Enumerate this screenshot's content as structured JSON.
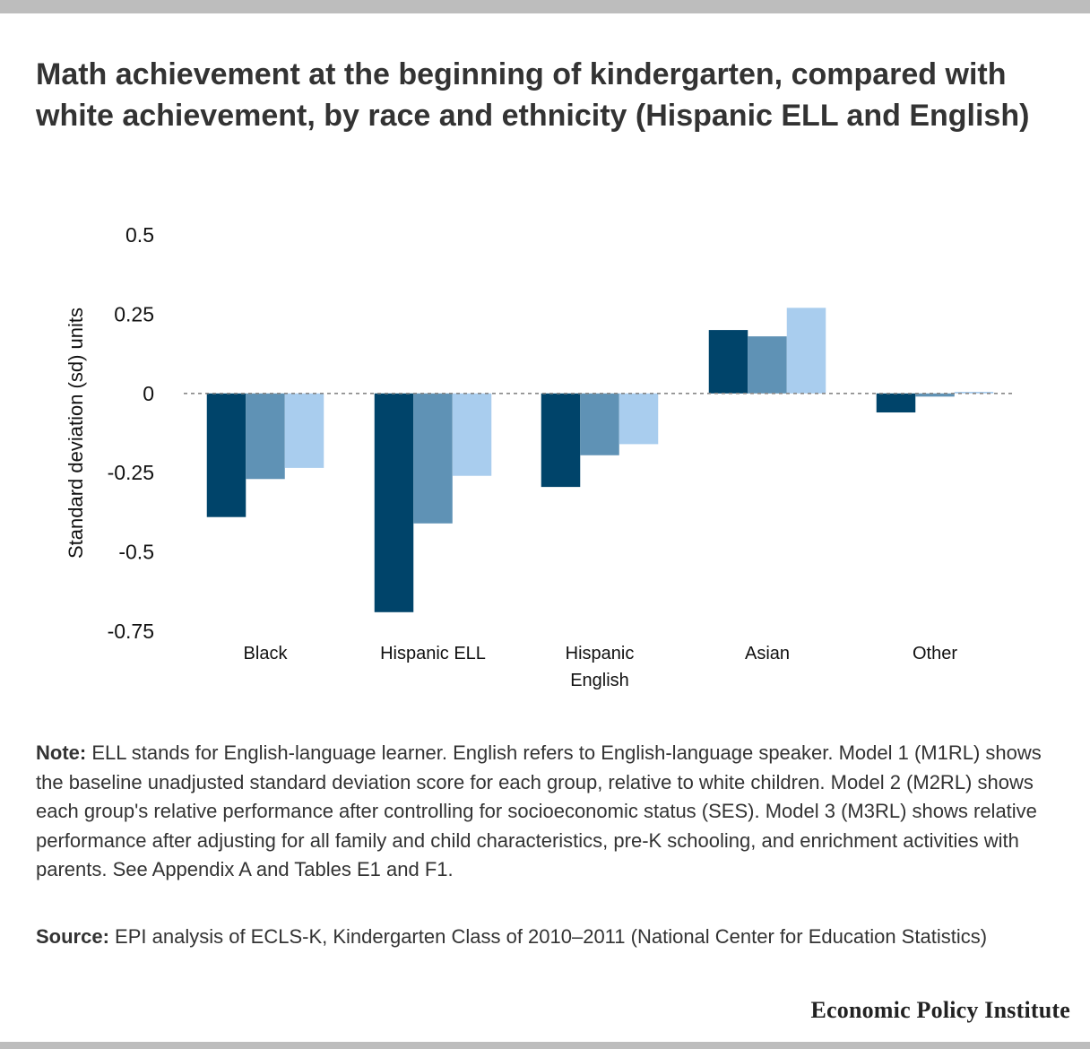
{
  "title": "Math achievement at the beginning of kindergarten, compared with white achievement, by race and ethnicity (Hispanic ELL and English)",
  "note": {
    "label": "Note:",
    "text": "ELL stands for English-language learner. English refers to English-language speaker. Model 1 (M1RL) shows the baseline unadjusted standard deviation score for each group, relative to white children. Model 2 (M2RL) shows each group's relative performance after controlling for socioeconomic status (SES). Model 3 (M3RL) shows relative performance after adjusting for all family and child characteristics, pre-K schooling, and enrichment activities with parents. See Appendix A and Tables E1 and F1."
  },
  "source": {
    "label": "Source:",
    "text": "EPI analysis of ECLS-K, Kindergarten Class of 2010–2011 (National Center for Education Statistics)"
  },
  "brand": "Economic Policy Institute",
  "chart_data": {
    "type": "bar",
    "title": "Math achievement at the beginning of kindergarten, compared with white achievement, by race and ethnicity (Hispanic ELL and English)",
    "xlabel": "",
    "ylabel": "Standard deviation (sd) units",
    "ylim": [
      -0.75,
      0.5
    ],
    "yticks": [
      0.5,
      0.25,
      0,
      -0.25,
      -0.5,
      -0.75
    ],
    "ytick_labels": [
      "0.5",
      "0.25",
      "0",
      "-0.25",
      "-0.5",
      "-0.75"
    ],
    "categories": [
      [
        "Black"
      ],
      [
        "Hispanic ELL"
      ],
      [
        "Hispanic",
        "English"
      ],
      [
        "Asian"
      ],
      [
        "Other"
      ]
    ],
    "series": [
      {
        "values": [
          -0.39,
          -0.69,
          -0.295,
          0.2,
          -0.06
        ],
        "color": "#00446a"
      },
      {
        "values": [
          -0.27,
          -0.41,
          -0.195,
          0.18,
          -0.01
        ],
        "color": "#5f92b5"
      },
      {
        "values": [
          -0.235,
          -0.26,
          -0.16,
          0.27,
          0.005
        ],
        "color": "#a9cdee"
      }
    ],
    "zero_line": {
      "style": "dashed",
      "color": "#888888"
    },
    "grid": false,
    "legend": "none"
  }
}
